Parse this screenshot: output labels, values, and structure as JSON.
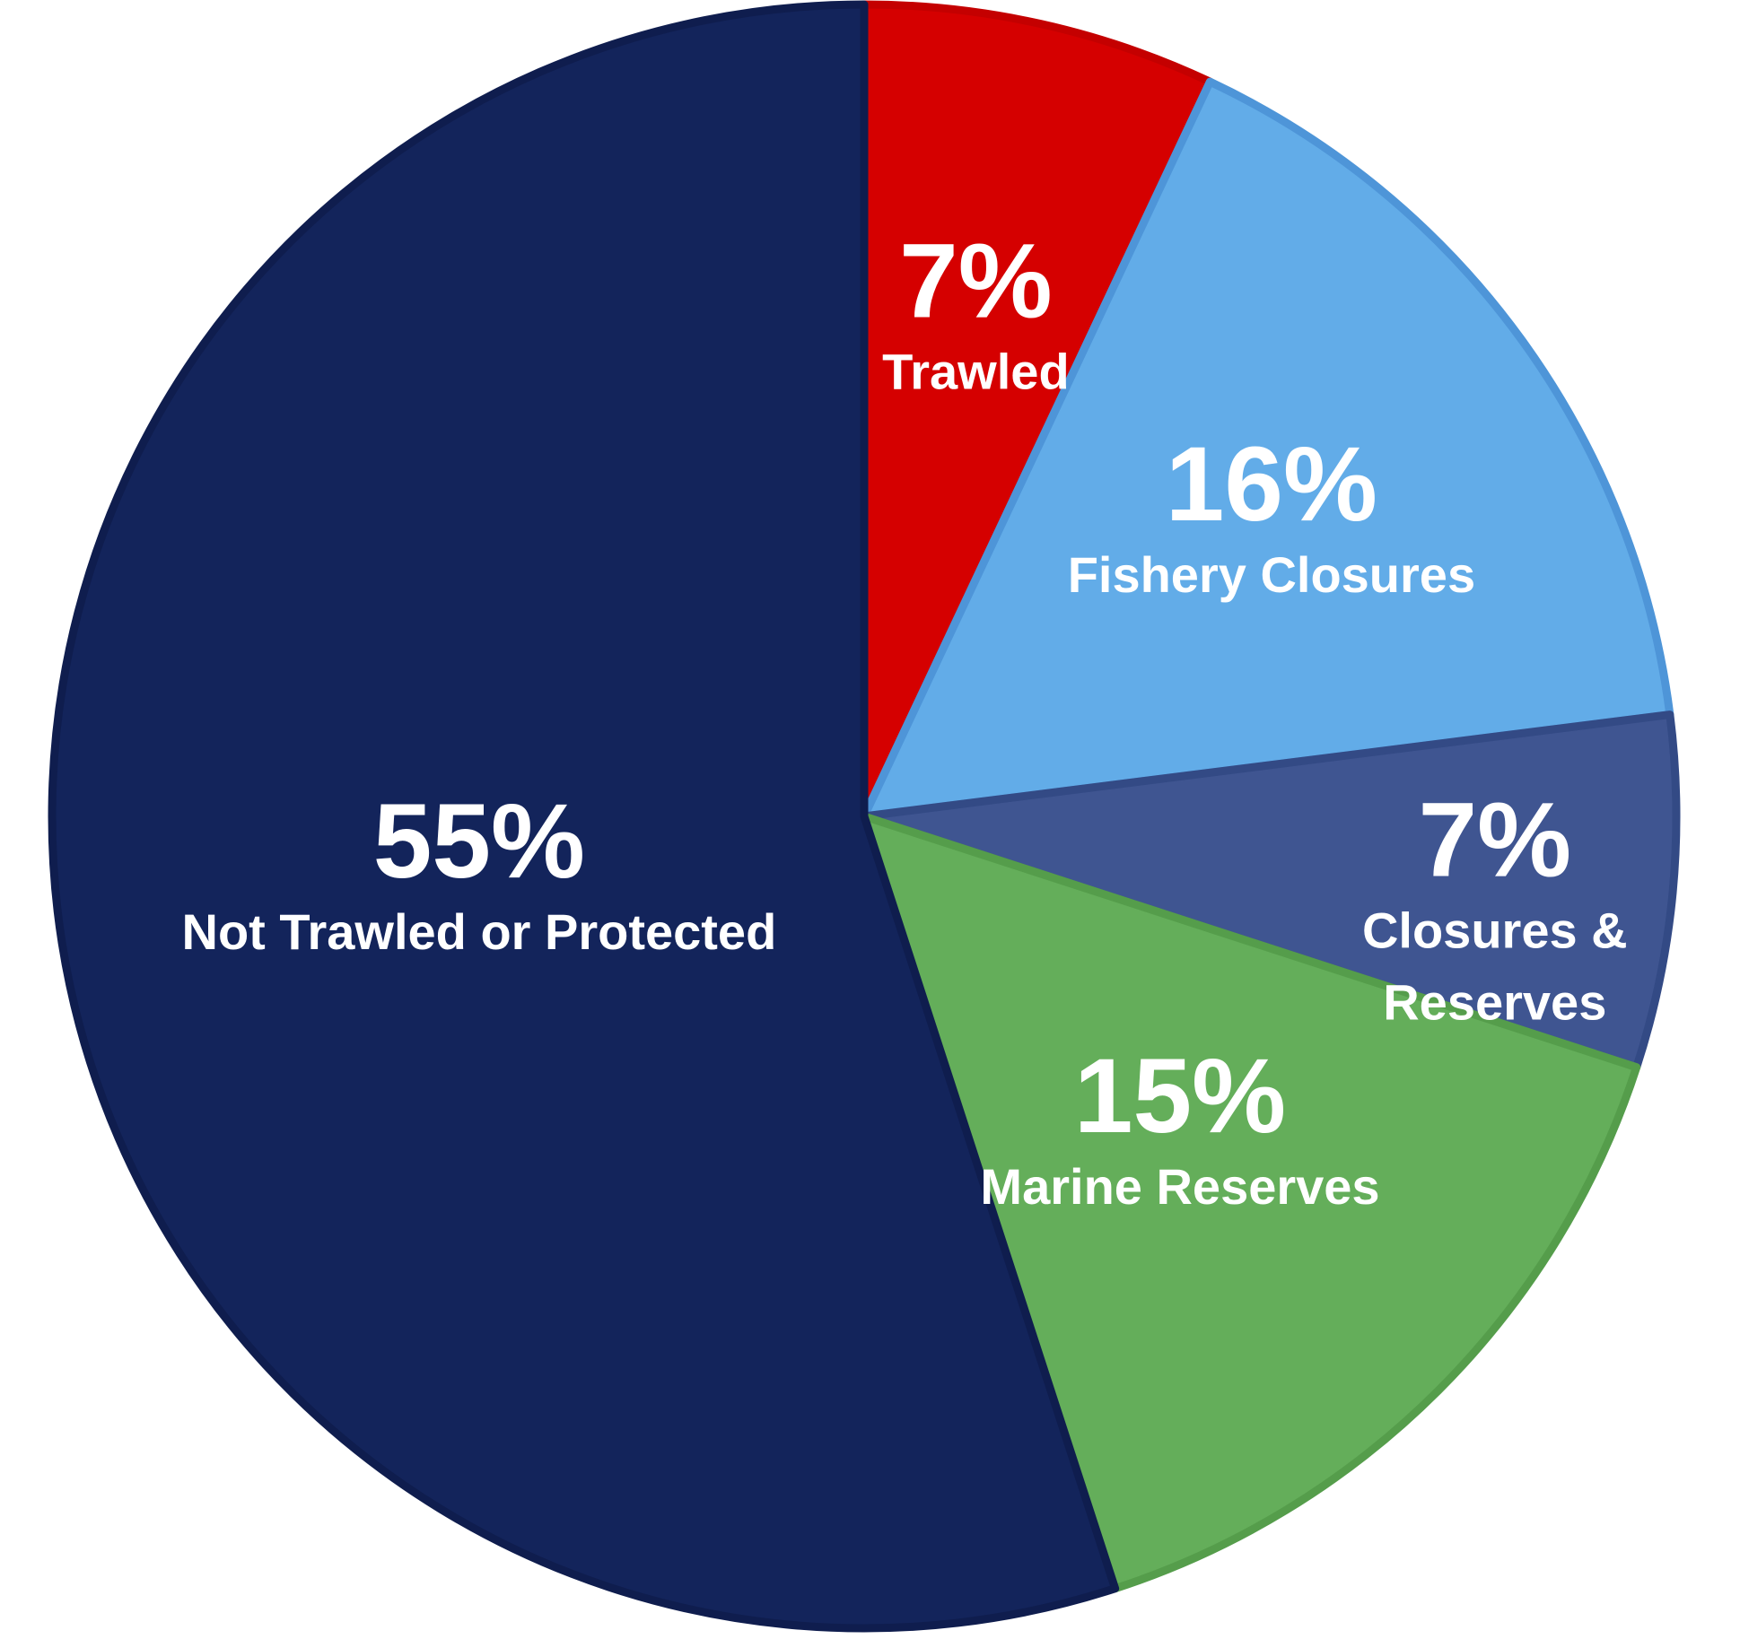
{
  "chart_data": {
    "type": "pie",
    "start_angle_deg": 0,
    "direction": "clockwise",
    "legend": "none",
    "slices": [
      {
        "label": "Trawled",
        "value": 7,
        "value_label": "7%",
        "color": "#d50000",
        "border": "#c40000"
      },
      {
        "label": "Fishery Closures",
        "value": 16,
        "value_label": "16%",
        "color": "#62ace8",
        "border": "#4e95d8"
      },
      {
        "label": "Closures & Reserves",
        "value": 7,
        "value_label": "7%",
        "color": "#3f5591",
        "border": "#334a85"
      },
      {
        "label": "Marine Reserves",
        "value": 15,
        "value_label": "15%",
        "color": "#64ae5a",
        "border": "#559d4b"
      },
      {
        "label": "Not Trawled or Protected",
        "value": 55,
        "value_label": "55%",
        "color": "#13245b",
        "border": "#0f1d4e"
      }
    ]
  }
}
